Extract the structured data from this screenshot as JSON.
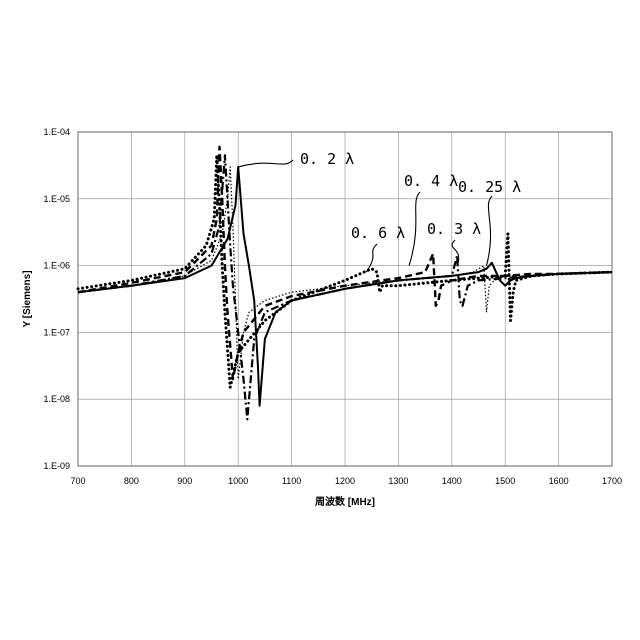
{
  "chart_data": {
    "type": "line",
    "title": "",
    "xlabel": "周波数 [MHz]",
    "ylabel": "Y [Siemens]",
    "xlim": [
      700,
      1700
    ],
    "ylim": [
      1e-09,
      0.0001
    ],
    "y_scale": "log",
    "grid": true,
    "legend": "none",
    "x_ticks": [
      700,
      800,
      900,
      1000,
      1100,
      1200,
      1300,
      1400,
      1500,
      1600,
      1700
    ],
    "x_tick_labels": [
      "700",
      "800",
      "900",
      "1000",
      "1100",
      "1200",
      "1300",
      "1400",
      "1500",
      "1600",
      "1700"
    ],
    "y_ticks": [
      1e-09,
      1e-08,
      1e-07,
      1e-06,
      1e-05,
      0.0001
    ],
    "y_tick_labels": [
      "1.E-09",
      "1.E-08",
      "1.E-07",
      "1.E-06",
      "1.E-05",
      "1.E-04"
    ],
    "series": [
      {
        "name": "0. 2 λ",
        "style": "solid",
        "x": [
          700,
          800,
          900,
          950,
          980,
          995,
          1000,
          1010,
          1020,
          1030,
          1037,
          1040,
          1050,
          1070,
          1100,
          1200,
          1300,
          1400,
          1450,
          1465,
          1475,
          1480,
          1490,
          1500,
          1510,
          1520,
          1550,
          1600,
          1700
        ],
        "y": [
          4e-07,
          5e-07,
          6.5e-07,
          1e-06,
          2.5e-06,
          8e-06,
          3e-05,
          3e-06,
          1e-06,
          3e-07,
          3e-08,
          8e-09,
          8e-08,
          2e-07,
          3e-07,
          4.5e-07,
          6e-07,
          7e-07,
          8e-07,
          9e-07,
          1.1e-06,
          9e-07,
          6e-07,
          5e-07,
          6e-07,
          6.5e-07,
          7e-07,
          7.5e-07,
          8e-07
        ]
      },
      {
        "name": "0. 25 λ",
        "style": "dotted",
        "x": [
          700,
          800,
          900,
          950,
          970,
          980,
          985,
          990,
          995,
          1000,
          1010,
          1020,
          1050,
          1100,
          1200,
          1300,
          1400,
          1440,
          1460,
          1465,
          1470,
          1480,
          1500,
          1550,
          1600,
          1700
        ],
        "y": [
          4e-07,
          5e-07,
          7e-07,
          1.2e-06,
          3e-06,
          1e-05,
          3e-05,
          4e-06,
          3e-07,
          2e-08,
          1e-07,
          2e-07,
          3e-07,
          4e-07,
          5e-07,
          6e-07,
          7e-07,
          8e-07,
          1e-06,
          2e-07,
          5e-07,
          6e-07,
          7e-07,
          7e-07,
          7.5e-07,
          8e-07
        ]
      },
      {
        "name": "0. 3 λ",
        "style": "dash-dot",
        "x": [
          700,
          800,
          900,
          950,
          965,
          975,
          980,
          985,
          990,
          1000,
          1010,
          1017,
          1030,
          1050,
          1100,
          1200,
          1300,
          1400,
          1410,
          1415,
          1420,
          1430,
          1450,
          1500,
          1550,
          1600,
          1700
        ],
        "y": [
          4e-07,
          5e-07,
          7e-07,
          1.5e-06,
          4e-06,
          4.5e-05,
          1e-05,
          2e-06,
          5e-07,
          1e-07,
          2e-08,
          5e-09,
          8e-08,
          2e-07,
          3e-07,
          4.5e-07,
          6e-07,
          7e-07,
          1.4e-06,
          3e-07,
          2.5e-07,
          5e-07,
          6e-07,
          6.5e-07,
          7e-07,
          7.5e-07,
          8e-07
        ]
      },
      {
        "name": "0. 4 λ",
        "style": "dashed",
        "x": [
          700,
          800,
          900,
          950,
          960,
          965,
          970,
          975,
          980,
          990,
          1000,
          1010,
          1050,
          1100,
          1200,
          1300,
          1350,
          1365,
          1370,
          1375,
          1380,
          1400,
          1450,
          1500,
          1550,
          1600,
          1700
        ],
        "y": [
          4e-07,
          5.5e-07,
          8e-07,
          2e-06,
          5e-06,
          6e-05,
          1e-05,
          1e-06,
          2e-07,
          2e-08,
          5e-08,
          1e-07,
          2.5e-07,
          3.5e-07,
          5e-07,
          6.5e-07,
          8e-07,
          1.5e-06,
          2.5e-07,
          3e-07,
          5e-07,
          6e-07,
          7e-07,
          7e-07,
          7.5e-07,
          7.5e-07,
          8e-07
        ]
      },
      {
        "name": "0. 6 λ",
        "style": "heavy-dotted",
        "x": [
          700,
          800,
          900,
          940,
          955,
          960,
          965,
          970,
          975,
          985,
          1000,
          1050,
          1100,
          1200,
          1250,
          1260,
          1265,
          1270,
          1300,
          1400,
          1450,
          1500,
          1505,
          1510,
          1515,
          1520,
          1550,
          1600,
          1700
        ],
        "y": [
          4.5e-07,
          6e-07,
          9e-07,
          2e-06,
          5e-06,
          4.5e-05,
          8e-06,
          1e-06,
          2e-07,
          1.5e-08,
          5e-08,
          1.5e-07,
          3e-07,
          6e-07,
          9e-07,
          8e-07,
          4e-07,
          5e-07,
          5e-07,
          6e-07,
          6.5e-07,
          7e-07,
          3e-06,
          1.5e-07,
          4e-07,
          6e-07,
          7e-07,
          7.5e-07,
          8e-07
        ]
      }
    ],
    "annotations": [
      {
        "text": "0. 2 λ",
        "x": 1000,
        "y": 3e-05
      },
      {
        "text": "0. 4 λ",
        "x": 1320,
        "y": 1e-06
      },
      {
        "text": "0. 25 λ",
        "x": 1465,
        "y": 1e-06
      },
      {
        "text": "0. 6 λ",
        "x": 1240,
        "y": 8e-07
      },
      {
        "text": "0. 3 λ",
        "x": 1410,
        "y": 1e-06
      }
    ]
  }
}
